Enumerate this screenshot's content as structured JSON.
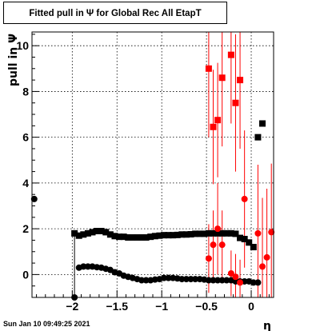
{
  "page": {
    "title": "Fitted pull in  Ψ  for Global Rec All EtapT",
    "timestamp": "Sun Jan 10 09:49:25 2021"
  },
  "chart_data": {
    "type": "scatter",
    "title": "Fitted pull in  Ψ  for Global Rec All EtapT",
    "xlabel": "η",
    "ylabel": "pull in  Ψ",
    "xlim": [
      -2.45,
      0.25
    ],
    "ylim": [
      -1.0,
      10.6
    ],
    "grid": true,
    "x_ticks": [
      -2,
      -1.5,
      -1,
      -0.5,
      0
    ],
    "x_tick_labels": [
      "−2",
      "−1.5",
      "−1",
      "−0.5",
      "0"
    ],
    "y_ticks": [
      0,
      2,
      4,
      6,
      8,
      10
    ],
    "y_tick_labels": [
      "0",
      "2",
      "4",
      "6",
      "8",
      "10"
    ],
    "colors": {
      "black": "#000000",
      "red": "#ff0000"
    },
    "series": [
      {
        "marker": "square",
        "color": "#000000",
        "points": [
          {
            "x": -1.975,
            "y": 1.8
          },
          {
            "x": -1.925,
            "y": 1.7
          },
          {
            "x": -1.875,
            "y": 1.75
          },
          {
            "x": -1.825,
            "y": 1.8
          },
          {
            "x": -1.775,
            "y": 1.85
          },
          {
            "x": -1.725,
            "y": 1.9
          },
          {
            "x": -1.675,
            "y": 1.9
          },
          {
            "x": -1.625,
            "y": 1.85
          },
          {
            "x": -1.575,
            "y": 1.75
          },
          {
            "x": -1.525,
            "y": 1.68
          },
          {
            "x": -1.475,
            "y": 1.65
          },
          {
            "x": -1.425,
            "y": 1.65
          },
          {
            "x": -1.375,
            "y": 1.62
          },
          {
            "x": -1.325,
            "y": 1.62
          },
          {
            "x": -1.275,
            "y": 1.62
          },
          {
            "x": -1.225,
            "y": 1.62
          },
          {
            "x": -1.175,
            "y": 1.62
          },
          {
            "x": -1.125,
            "y": 1.65
          },
          {
            "x": -1.075,
            "y": 1.68
          },
          {
            "x": -1.025,
            "y": 1.7
          },
          {
            "x": -0.975,
            "y": 1.72
          },
          {
            "x": -0.925,
            "y": 1.72
          },
          {
            "x": -0.875,
            "y": 1.72
          },
          {
            "x": -0.825,
            "y": 1.73
          },
          {
            "x": -0.775,
            "y": 1.75
          },
          {
            "x": -0.725,
            "y": 1.75
          },
          {
            "x": -0.675,
            "y": 1.76
          },
          {
            "x": -0.625,
            "y": 1.78
          },
          {
            "x": -0.575,
            "y": 1.78
          },
          {
            "x": -0.525,
            "y": 1.78
          },
          {
            "x": -0.475,
            "y": 1.8
          },
          {
            "x": -0.425,
            "y": 1.8
          },
          {
            "x": -0.375,
            "y": 1.8
          },
          {
            "x": -0.325,
            "y": 1.8
          },
          {
            "x": -0.275,
            "y": 1.8
          },
          {
            "x": -0.225,
            "y": 1.8
          },
          {
            "x": -0.175,
            "y": 1.78
          },
          {
            "x": -0.125,
            "y": 1.6
          },
          {
            "x": -0.075,
            "y": 1.55
          },
          {
            "x": -0.025,
            "y": 1.4
          },
          {
            "x": 0.025,
            "y": 1.2
          },
          {
            "x": 0.075,
            "y": 6.0
          },
          {
            "x": 0.125,
            "y": 6.6
          }
        ]
      },
      {
        "marker": "circle",
        "color": "#000000",
        "points": [
          {
            "x": -2.425,
            "y": 3.3
          },
          {
            "x": -1.975,
            "y": -1.0
          },
          {
            "x": -1.925,
            "y": 0.3
          },
          {
            "x": -1.875,
            "y": 0.35
          },
          {
            "x": -1.825,
            "y": 0.35
          },
          {
            "x": -1.775,
            "y": 0.35
          },
          {
            "x": -1.725,
            "y": 0.32
          },
          {
            "x": -1.675,
            "y": 0.3
          },
          {
            "x": -1.625,
            "y": 0.25
          },
          {
            "x": -1.575,
            "y": 0.2
          },
          {
            "x": -1.525,
            "y": 0.1
          },
          {
            "x": -1.475,
            "y": 0.05
          },
          {
            "x": -1.425,
            "y": -0.05
          },
          {
            "x": -1.375,
            "y": -0.1
          },
          {
            "x": -1.325,
            "y": -0.15
          },
          {
            "x": -1.275,
            "y": -0.2
          },
          {
            "x": -1.225,
            "y": -0.25
          },
          {
            "x": -1.175,
            "y": -0.25
          },
          {
            "x": -1.125,
            "y": -0.25
          },
          {
            "x": -1.075,
            "y": -0.22
          },
          {
            "x": -1.025,
            "y": -0.2
          },
          {
            "x": -0.975,
            "y": -0.15
          },
          {
            "x": -0.925,
            "y": -0.15
          },
          {
            "x": -0.875,
            "y": -0.15
          },
          {
            "x": -0.825,
            "y": -0.17
          },
          {
            "x": -0.775,
            "y": -0.2
          },
          {
            "x": -0.725,
            "y": -0.2
          },
          {
            "x": -0.675,
            "y": -0.2
          },
          {
            "x": -0.625,
            "y": -0.2
          },
          {
            "x": -0.575,
            "y": -0.2
          },
          {
            "x": -0.525,
            "y": -0.22
          },
          {
            "x": -0.475,
            "y": -0.25
          },
          {
            "x": -0.425,
            "y": -0.25
          },
          {
            "x": -0.375,
            "y": -0.25
          },
          {
            "x": -0.325,
            "y": -0.25
          },
          {
            "x": -0.275,
            "y": -0.25
          },
          {
            "x": -0.225,
            "y": -0.25
          },
          {
            "x": -0.175,
            "y": -0.3
          },
          {
            "x": -0.125,
            "y": -0.3
          },
          {
            "x": -0.075,
            "y": -0.3
          },
          {
            "x": -0.025,
            "y": -0.3
          },
          {
            "x": 0.025,
            "y": -0.35
          },
          {
            "x": 0.075,
            "y": -0.35
          }
        ]
      },
      {
        "marker": "square",
        "color": "#ff0000",
        "points": [
          {
            "x": -0.475,
            "y": 9.0,
            "err": 3.0
          },
          {
            "x": -0.425,
            "y": 6.45,
            "err": 2.5
          },
          {
            "x": -0.375,
            "y": 6.75,
            "err": 2.5
          },
          {
            "x": -0.325,
            "y": 8.6,
            "err": 3.0
          },
          {
            "x": -0.225,
            "y": 9.6,
            "err": 3.0
          },
          {
            "x": -0.175,
            "y": 7.5,
            "err": 3.0
          },
          {
            "x": -0.125,
            "y": 8.5,
            "err": 3.0
          }
        ]
      },
      {
        "marker": "circle",
        "color": "#ff0000",
        "points": [
          {
            "x": -0.475,
            "y": 0.7,
            "err": 1.5
          },
          {
            "x": -0.425,
            "y": 1.3,
            "err": 1.5
          },
          {
            "x": -0.375,
            "y": 2.0,
            "err": 2.0
          },
          {
            "x": -0.325,
            "y": 1.3,
            "err": 1.5
          },
          {
            "x": -0.225,
            "y": 0.05,
            "err": 1.0
          },
          {
            "x": -0.175,
            "y": -0.1,
            "err": 1.0
          },
          {
            "x": -0.125,
            "y": -0.35,
            "err": 1.0
          },
          {
            "x": -0.075,
            "y": 3.3,
            "err": 3.0
          },
          {
            "x": 0.075,
            "y": 1.8,
            "err": 3.0
          },
          {
            "x": 0.125,
            "y": 0.35,
            "err": 3.0
          },
          {
            "x": 0.175,
            "y": 0.75,
            "err": 3.0
          },
          {
            "x": 0.225,
            "y": 1.85,
            "err": 3.0
          }
        ]
      }
    ]
  }
}
